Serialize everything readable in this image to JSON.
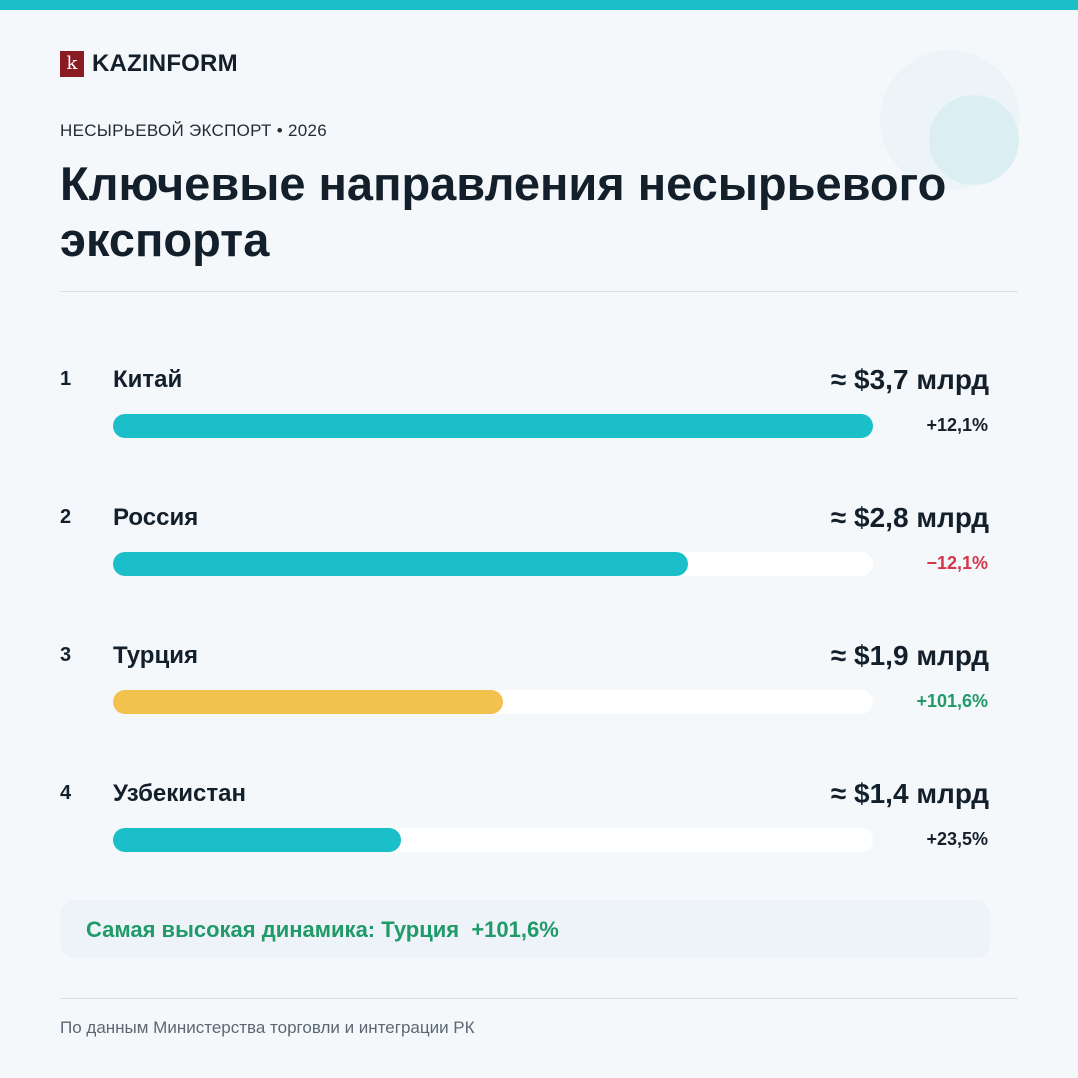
{
  "brand": {
    "logo_letter": "k",
    "name": "KAZINFORM"
  },
  "kicker": "НЕСЫРЬЕВОЙ ЭКСПОРТ • 2026",
  "title": "Ключевые направления несырьевого экспорта",
  "colors": {
    "accent": "#1bbfc9",
    "highlight_bar": "#f2c14e",
    "positive": "#1f9a68",
    "negative": "#d1364a",
    "neutral": "#13202b",
    "brand": "#8b1b22"
  },
  "chart_data": {
    "type": "bar",
    "orientation": "horizontal",
    "categories": [
      "Китай",
      "Россия",
      "Турция",
      "Узбекистан"
    ],
    "values": [
      3.7,
      2.8,
      1.9,
      1.4
    ],
    "unit": "млрд $",
    "xlim": [
      0,
      3.7
    ],
    "items": [
      {
        "rank": "1",
        "country": "Китай",
        "value": 3.7,
        "value_label": "≈ $3,7 млрд",
        "change": "+12,1%",
        "change_tone": "neutral",
        "bar_color": "#1bbfc9"
      },
      {
        "rank": "2",
        "country": "Россия",
        "value": 2.8,
        "value_label": "≈ $2,8 млрд",
        "change": "−12,1%",
        "change_tone": "negative",
        "bar_color": "#1bbfc9"
      },
      {
        "rank": "3",
        "country": "Турция",
        "value": 1.9,
        "value_label": "≈ $1,9 млрд",
        "change": "+101,6%",
        "change_tone": "positive",
        "bar_color": "#f2c14e"
      },
      {
        "rank": "4",
        "country": "Узбекистан",
        "value": 1.4,
        "value_label": "≈ $1,4 млрд",
        "change": "+23,5%",
        "change_tone": "neutral",
        "bar_color": "#1bbfc9"
      }
    ]
  },
  "highlight": {
    "text": "Самая высокая динамика: Турция  +101,6%"
  },
  "source": "По данным Министерства торговли и интеграции РК"
}
